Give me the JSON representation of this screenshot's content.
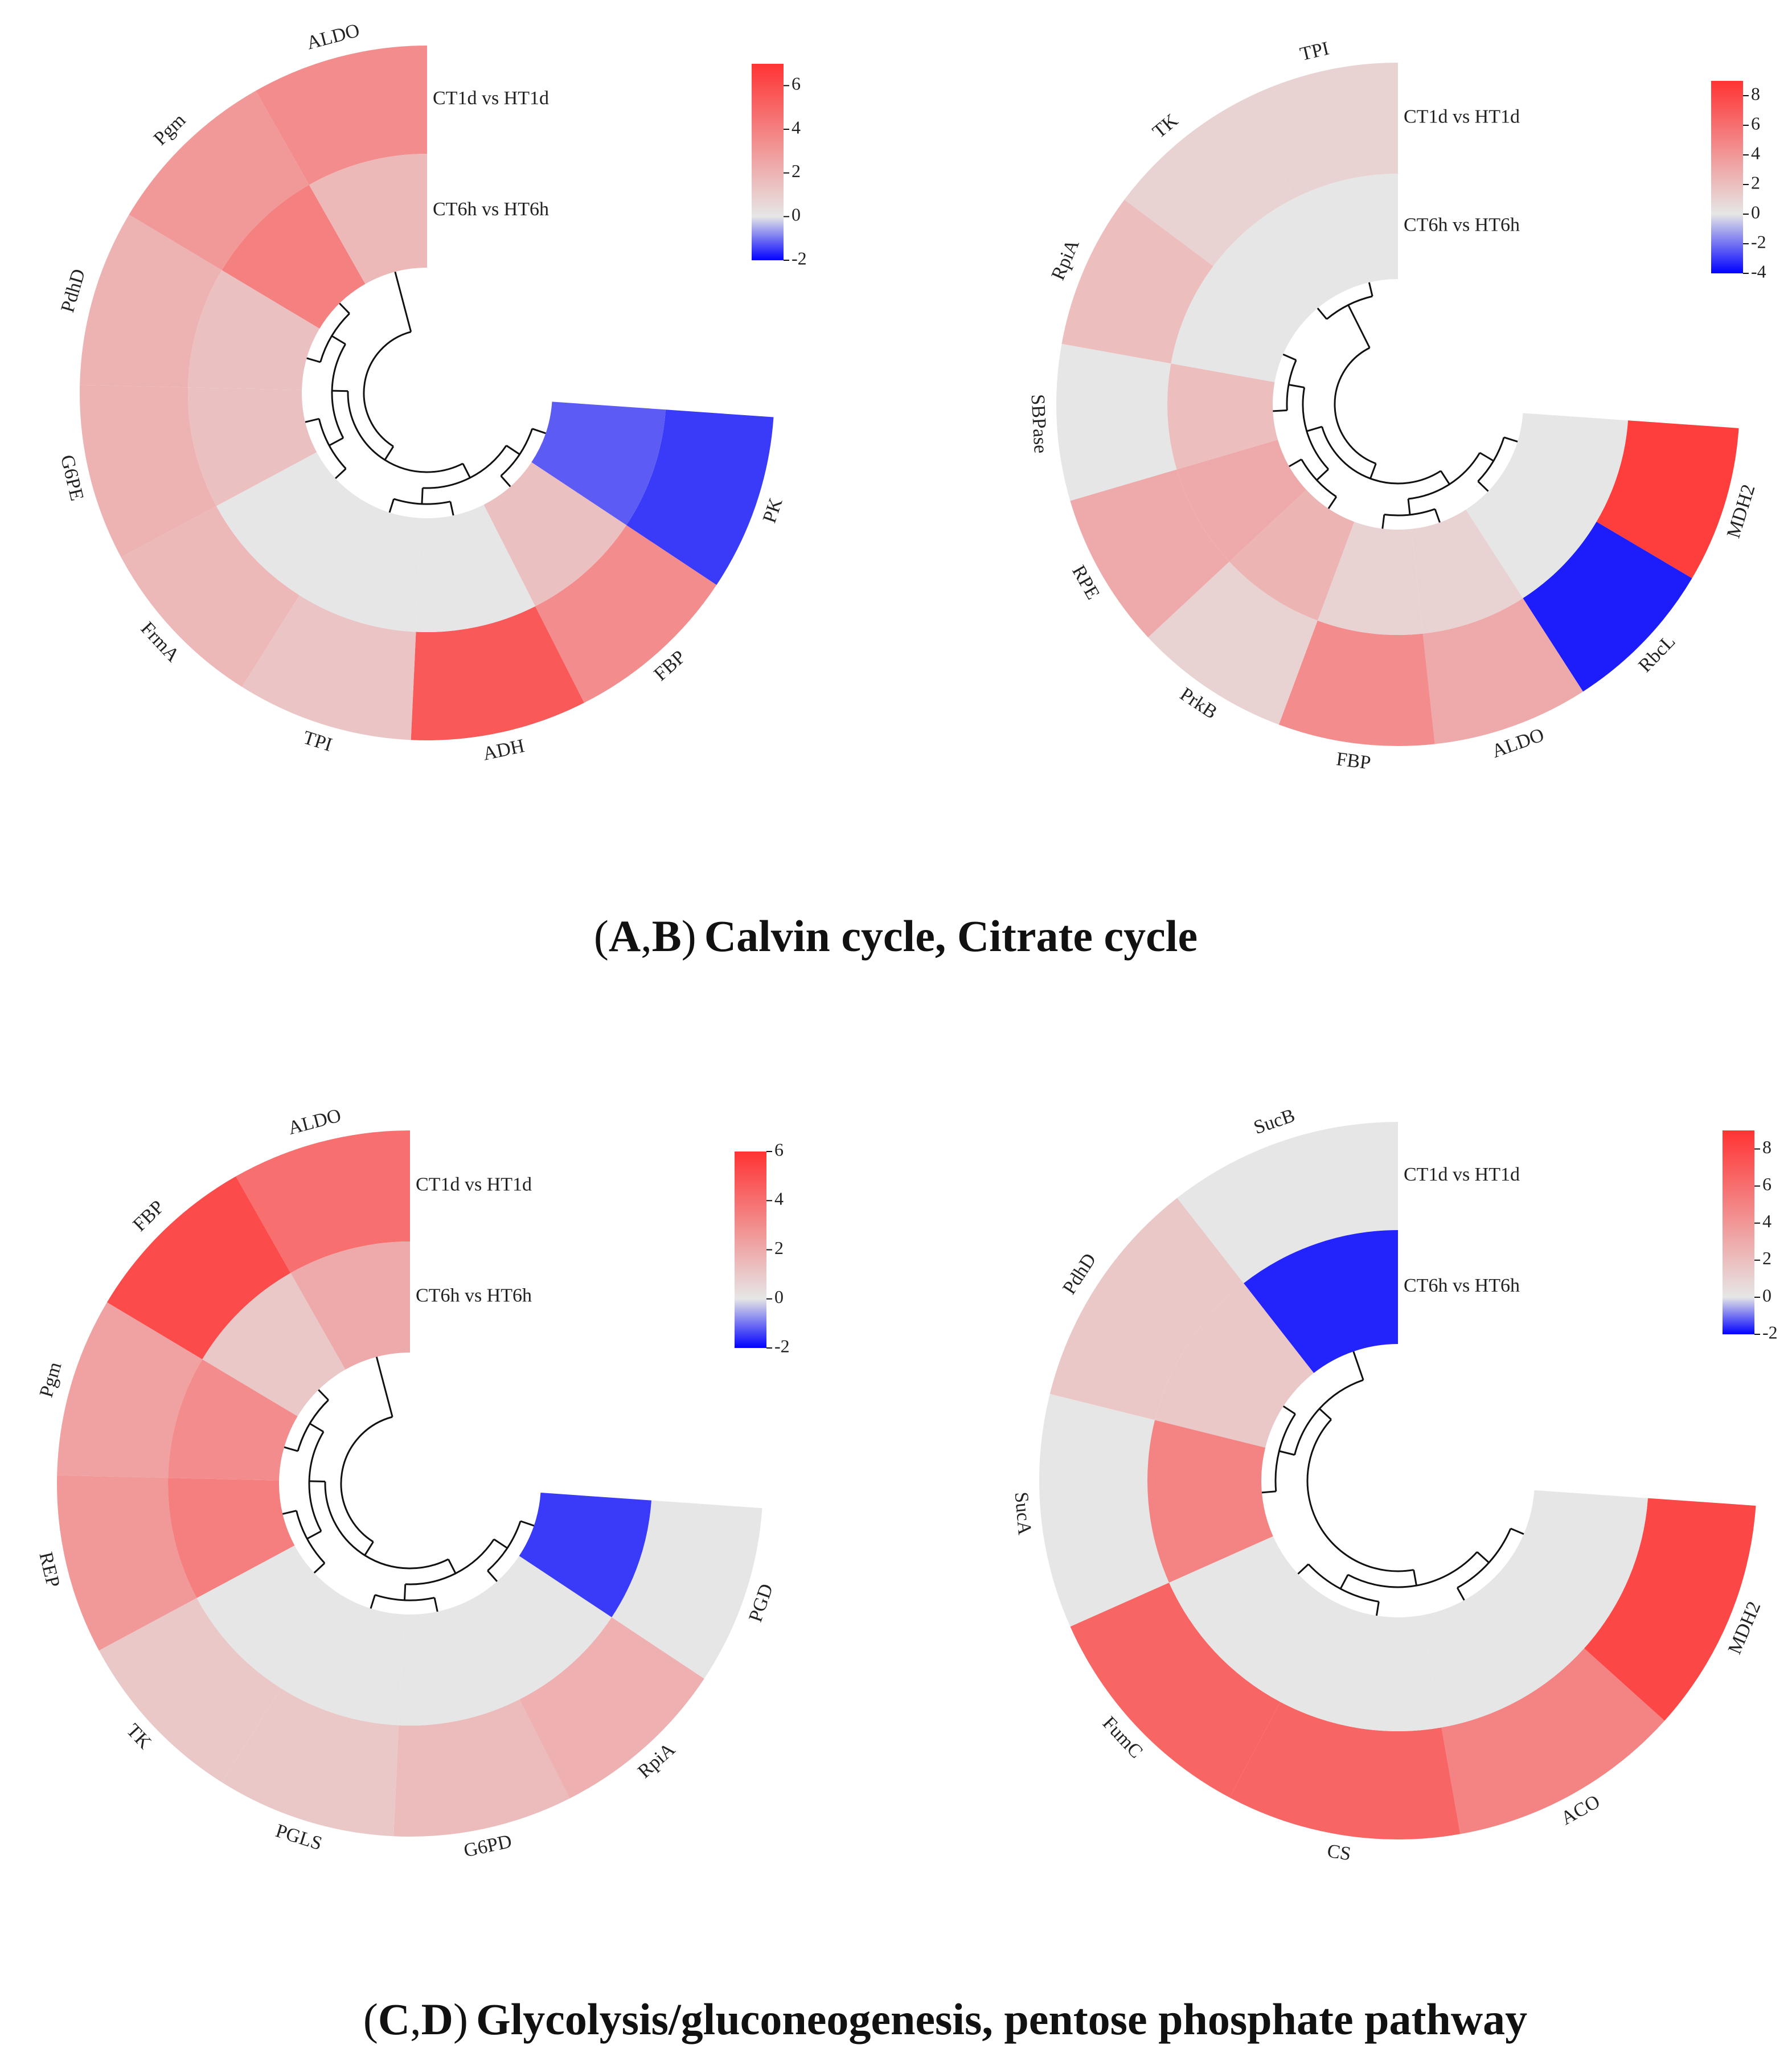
{
  "captions": {
    "top": {
      "open": "(",
      "a": "A",
      "comma": ",",
      "b": "B",
      "close": ")",
      "text": "Calvin cycle, Citrate cycle"
    },
    "bottom": {
      "open": "(",
      "a": "C",
      "comma": ",",
      "b": "D",
      "close": ")",
      "text": "Glycolysis/gluconeogenesis, pentose phosphate pathway"
    }
  },
  "chart_data": [
    {
      "type": "heatmap",
      "layout": "circular",
      "rings": [
        "CT1d vs HT1d",
        "CT6h vs HT6h"
      ],
      "genes": [
        "PK",
        "FBP",
        "ADH",
        "TPI",
        "FrmA",
        "G6PE",
        "PdhD",
        "Pgm",
        "ALDO"
      ],
      "values": [
        [
          -1.5,
          3.5,
          5.5,
          1.3,
          1.8,
          2.0,
          2.0,
          3.0,
          3.5
        ],
        [
          -1.2,
          1.5,
          0,
          0,
          0,
          1.5,
          1.5,
          4.0,
          1.8
        ]
      ],
      "colorbar": {
        "min": -2,
        "max": 7,
        "ticks": [
          6,
          4,
          2,
          0,
          -2
        ],
        "tick_labels": [
          "6",
          "4",
          "2",
          "0",
          "-2"
        ],
        "colors": [
          "#0000ff",
          "#e6e6e6",
          "#ff3333"
        ]
      }
    },
    {
      "type": "heatmap",
      "layout": "circular",
      "rings": [
        "CT1d vs HT1d",
        "CT6h vs HT6h"
      ],
      "genes": [
        "MDH2",
        "RbcL",
        "ALDO",
        "FBP",
        "PrkB",
        "RPE",
        "SBPase",
        "RpiA",
        "TK",
        "TPI"
      ],
      "values": [
        [
          8.5,
          -3.5,
          3.0,
          4.5,
          1.0,
          3.0,
          0,
          2.0,
          1.0,
          1.0
        ],
        [
          0,
          0,
          1.0,
          1.0,
          2.5,
          3.0,
          2.0,
          0,
          0,
          0
        ]
      ],
      "colorbar": {
        "min": -4,
        "max": 9,
        "ticks": [
          8,
          6,
          4,
          2,
          0,
          -2,
          -4
        ],
        "tick_labels": [
          "8",
          "6",
          "4",
          "2",
          "0",
          "-2",
          "-4"
        ],
        "colors": [
          "#0000ff",
          "#e6e6e6",
          "#ff3333"
        ]
      }
    },
    {
      "type": "heatmap",
      "layout": "circular",
      "rings": [
        "CT1d vs HT1d",
        "CT6h vs HT6h"
      ],
      "genes": [
        "PGD",
        "RpiA",
        "G6PD",
        "PGLS",
        "TK",
        "REP",
        "Pgm",
        "FBP",
        "ALDO"
      ],
      "values": [
        [
          0,
          1.8,
          1.4,
          1.0,
          1.0,
          2.6,
          2.3,
          5.2,
          4.0
        ],
        [
          -1.5,
          0,
          0,
          0,
          0,
          3.5,
          3.0,
          1.0,
          2.0
        ]
      ],
      "colorbar": {
        "min": -2,
        "max": 6,
        "ticks": [
          6,
          4,
          2,
          0,
          -2
        ],
        "tick_labels": [
          "6",
          "4",
          "2",
          "0",
          "-2"
        ],
        "colors": [
          "#0000ff",
          "#e6e6e6",
          "#ff3333"
        ]
      }
    },
    {
      "type": "heatmap",
      "layout": "circular",
      "rings": [
        "CT1d vs HT1d",
        "CT6h vs HT6h"
      ],
      "genes": [
        "MDH2",
        "ACO",
        "CS",
        "FumC",
        "SucA",
        "PdhD",
        "SucB"
      ],
      "values": [
        [
          8.0,
          5.0,
          6.5,
          6.5,
          0,
          1.5,
          0
        ],
        [
          0,
          0,
          0,
          0,
          5.0,
          1.5,
          -1.7
        ]
      ],
      "colorbar": {
        "min": -2,
        "max": 9,
        "ticks": [
          8,
          6,
          4,
          2,
          0,
          -2
        ],
        "tick_labels": [
          "8",
          "6",
          "4",
          "2",
          "0",
          "-2"
        ],
        "colors": [
          "#0000ff",
          "#e6e6e6",
          "#ff3333"
        ]
      }
    }
  ]
}
